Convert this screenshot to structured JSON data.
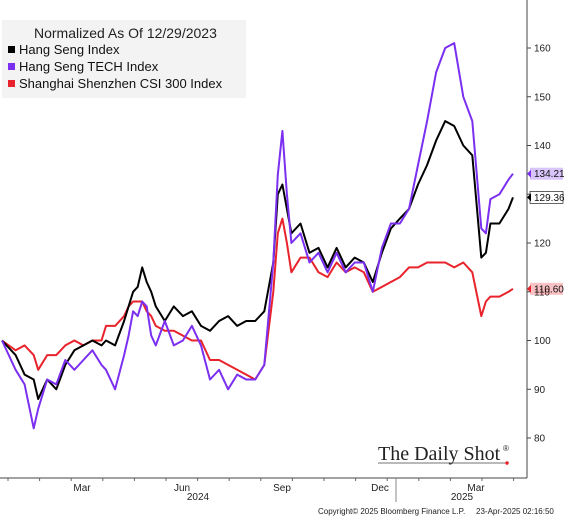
{
  "chart_data": {
    "type": "line",
    "title": "Normalized As Of 12/29/2023",
    "ylim": [
      77,
      166
    ],
    "yticks": [
      80,
      90,
      100,
      110,
      120,
      130,
      140,
      150,
      160
    ],
    "grid": false,
    "legend_placement": "top-left",
    "x_month_labels": [
      "Mar",
      "Jun",
      "Sep",
      "Dec",
      "Mar"
    ],
    "x_year_labels": [
      "2024",
      "2025"
    ],
    "series": [
      {
        "name": "Hang Seng Index",
        "color": "#000000",
        "end_label": "129.36",
        "values": [
          [
            0,
            100
          ],
          [
            1.5,
            97
          ],
          [
            2.5,
            93
          ],
          [
            3.5,
            92
          ],
          [
            4,
            88
          ],
          [
            5,
            92
          ],
          [
            6,
            90
          ],
          [
            7,
            95
          ],
          [
            8,
            98
          ],
          [
            9,
            99
          ],
          [
            10,
            100
          ],
          [
            11,
            99
          ],
          [
            11.5,
            100
          ],
          [
            12.5,
            99
          ],
          [
            13.5,
            104
          ],
          [
            14,
            107
          ],
          [
            14.5,
            110
          ],
          [
            15,
            111
          ],
          [
            15.5,
            115
          ],
          [
            16,
            112
          ],
          [
            16.5,
            110
          ],
          [
            17,
            107
          ],
          [
            18,
            104
          ],
          [
            19,
            107
          ],
          [
            20,
            105
          ],
          [
            21,
            106
          ],
          [
            22,
            103
          ],
          [
            23,
            102
          ],
          [
            24,
            104
          ],
          [
            25,
            105
          ],
          [
            26,
            103
          ],
          [
            27,
            104
          ],
          [
            28,
            104
          ],
          [
            29,
            106
          ],
          [
            30,
            116
          ],
          [
            30.5,
            130
          ],
          [
            31,
            132
          ],
          [
            31.5,
            127
          ],
          [
            32,
            122
          ],
          [
            33,
            124
          ],
          [
            34,
            118
          ],
          [
            35,
            119
          ],
          [
            36,
            115
          ],
          [
            37,
            119
          ],
          [
            38,
            115
          ],
          [
            39,
            117
          ],
          [
            40,
            116
          ],
          [
            41,
            112
          ],
          [
            42,
            118
          ],
          [
            43,
            123
          ],
          [
            44,
            125
          ],
          [
            45,
            127
          ],
          [
            46,
            132
          ],
          [
            47,
            136
          ],
          [
            48,
            141
          ],
          [
            49,
            145
          ],
          [
            50,
            144
          ],
          [
            51,
            140
          ],
          [
            52,
            138
          ],
          [
            53,
            117
          ],
          [
            53.5,
            118
          ],
          [
            54,
            124
          ],
          [
            55,
            124
          ],
          [
            56,
            127
          ],
          [
            56.5,
            129.36
          ]
        ]
      },
      {
        "name": "Hang Seng TECH Index",
        "color": "#7b2ff0",
        "end_label": "134.21",
        "values": [
          [
            0,
            100
          ],
          [
            1.5,
            94
          ],
          [
            2.5,
            91
          ],
          [
            3.5,
            82
          ],
          [
            4,
            86
          ],
          [
            5,
            92
          ],
          [
            6,
            91
          ],
          [
            7,
            96
          ],
          [
            8,
            94
          ],
          [
            9,
            96
          ],
          [
            10,
            98
          ],
          [
            11,
            95
          ],
          [
            11.5,
            94
          ],
          [
            12.5,
            90
          ],
          [
            13.5,
            97
          ],
          [
            14,
            101
          ],
          [
            14.5,
            106
          ],
          [
            15,
            105
          ],
          [
            15.5,
            108
          ],
          [
            16,
            107
          ],
          [
            16.5,
            101
          ],
          [
            17,
            99
          ],
          [
            18,
            104
          ],
          [
            19,
            99
          ],
          [
            20,
            100
          ],
          [
            21,
            103
          ],
          [
            22,
            99
          ],
          [
            23,
            92
          ],
          [
            24,
            94
          ],
          [
            25,
            90
          ],
          [
            26,
            93
          ],
          [
            27,
            92
          ],
          [
            28,
            92
          ],
          [
            29,
            95
          ],
          [
            30,
            116
          ],
          [
            30.5,
            134
          ],
          [
            31,
            143
          ],
          [
            31.5,
            130
          ],
          [
            32,
            120
          ],
          [
            33,
            122
          ],
          [
            34,
            116
          ],
          [
            35,
            118
          ],
          [
            36,
            114
          ],
          [
            37,
            118
          ],
          [
            38,
            114
          ],
          [
            39,
            116
          ],
          [
            40,
            116
          ],
          [
            41,
            110
          ],
          [
            42,
            119
          ],
          [
            43,
            124
          ],
          [
            44,
            124
          ],
          [
            45,
            127
          ],
          [
            46,
            136
          ],
          [
            47,
            145
          ],
          [
            48,
            155
          ],
          [
            49,
            160
          ],
          [
            50,
            161
          ],
          [
            51,
            150
          ],
          [
            52,
            145
          ],
          [
            53,
            123
          ],
          [
            53.5,
            122
          ],
          [
            54,
            129
          ],
          [
            55,
            130
          ],
          [
            56,
            133
          ],
          [
            56.5,
            134.21
          ]
        ]
      },
      {
        "name": "Shanghai Shenzhen CSI 300 Index",
        "color": "#e8232b",
        "end_label": "110.60",
        "values": [
          [
            0,
            100
          ],
          [
            1.5,
            98
          ],
          [
            2.5,
            99
          ],
          [
            3.5,
            97
          ],
          [
            4,
            94
          ],
          [
            5,
            97
          ],
          [
            6,
            97
          ],
          [
            7,
            99
          ],
          [
            8,
            100
          ],
          [
            9,
            99
          ],
          [
            10,
            100
          ],
          [
            11,
            100
          ],
          [
            11.5,
            103
          ],
          [
            12.5,
            103
          ],
          [
            13.5,
            105
          ],
          [
            14,
            107
          ],
          [
            14.5,
            108
          ],
          [
            15,
            108
          ],
          [
            15.5,
            108
          ],
          [
            16,
            106
          ],
          [
            16.5,
            105
          ],
          [
            17,
            103
          ],
          [
            18,
            102
          ],
          [
            19,
            102
          ],
          [
            20,
            101
          ],
          [
            21,
            100
          ],
          [
            22,
            100
          ],
          [
            23,
            96
          ],
          [
            24,
            96
          ],
          [
            25,
            95
          ],
          [
            26,
            94
          ],
          [
            27,
            93
          ],
          [
            28,
            92
          ],
          [
            29,
            95
          ],
          [
            30,
            110
          ],
          [
            30.5,
            122
          ],
          [
            31,
            125
          ],
          [
            31.5,
            120
          ],
          [
            32,
            114
          ],
          [
            33,
            117
          ],
          [
            34,
            117
          ],
          [
            35,
            114
          ],
          [
            36,
            113
          ],
          [
            37,
            116
          ],
          [
            38,
            114
          ],
          [
            39,
            115
          ],
          [
            40,
            114
          ],
          [
            41,
            110
          ],
          [
            42,
            111
          ],
          [
            43,
            112
          ],
          [
            44,
            113
          ],
          [
            45,
            115
          ],
          [
            46,
            115
          ],
          [
            47,
            116
          ],
          [
            48,
            116
          ],
          [
            49,
            116
          ],
          [
            50,
            115
          ],
          [
            51,
            116
          ],
          [
            52,
            114
          ],
          [
            53,
            105
          ],
          [
            53.5,
            108
          ],
          [
            54,
            109
          ],
          [
            55,
            109
          ],
          [
            56,
            110
          ],
          [
            56.5,
            110.6
          ]
        ]
      }
    ]
  },
  "watermark": "The Daily Shot",
  "watermark_mark": "®",
  "footer": {
    "copyright": "Copyright© 2025 Bloomberg Finance L.P.",
    "timestamp": "23-Apr-2025 02:16:50"
  }
}
